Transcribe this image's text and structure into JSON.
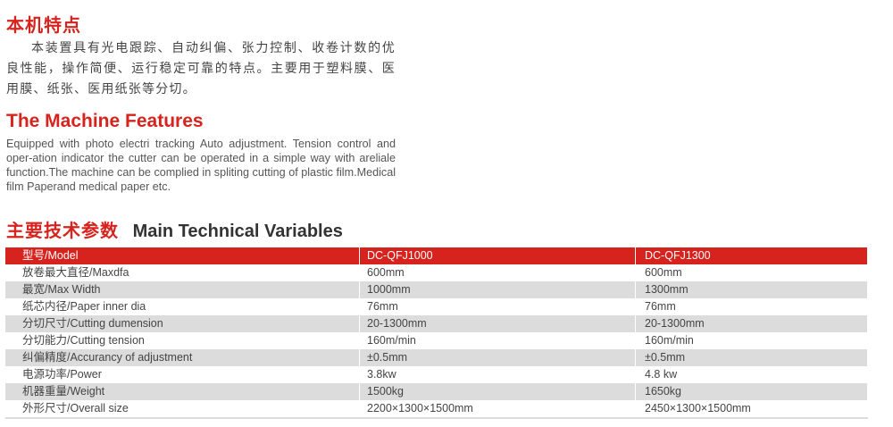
{
  "intro": {
    "title_cn": "本机特点",
    "paragraph_cn": "本装置具有光电跟踪、自动纠偏、张力控制、收卷计数的优良性能，操作简便、运行稳定可靠的特点。主要用于塑料膜、医用膜、纸张、医用纸张等分切。",
    "title_en": "The Machine Features",
    "paragraph_en": "Equipped with photo electri tracking Auto  adjustment. Tension control and oper-ation indicator the cutter can be operated in a simple way with areliale function.The machine can be complied in spliting cutting of plastic film.Medical film Paperand medical paper etc."
  },
  "specs": {
    "title_cn": "主要技术参数",
    "title_en": "Main Technical Variables",
    "header": [
      "型号/Model",
      "DC-QFJ1000",
      "DC-QFJ1300"
    ],
    "rows": [
      [
        "放卷最大直径/Maxdfa",
        "600mm",
        "600mm"
      ],
      [
        "最宽/Max Width",
        "1000mm",
        "1300mm"
      ],
      [
        "纸芯内径/Paper inner dia",
        "76mm",
        "76mm"
      ],
      [
        "分切尺寸/Cutting dumension",
        "20-1300mm",
        "20-1300mm"
      ],
      [
        "分切能力/Cutting tension",
        "160m/min",
        "160m/min"
      ],
      [
        "纠偏精度/Accurancy of adjustment",
        "±0.5mm",
        "±0.5mm"
      ],
      [
        "电源功率/Power",
        "3.8kw",
        "4.8 kw"
      ],
      [
        "机器重量/Weight",
        "1500kg",
        "1650kg"
      ],
      [
        "外形尺寸/Overall size",
        "2200×1300×1500mm",
        "2450×1300×1500mm"
      ]
    ]
  },
  "colors": {
    "accent": "#d7231e",
    "row_alt": "#dcdcdc"
  }
}
